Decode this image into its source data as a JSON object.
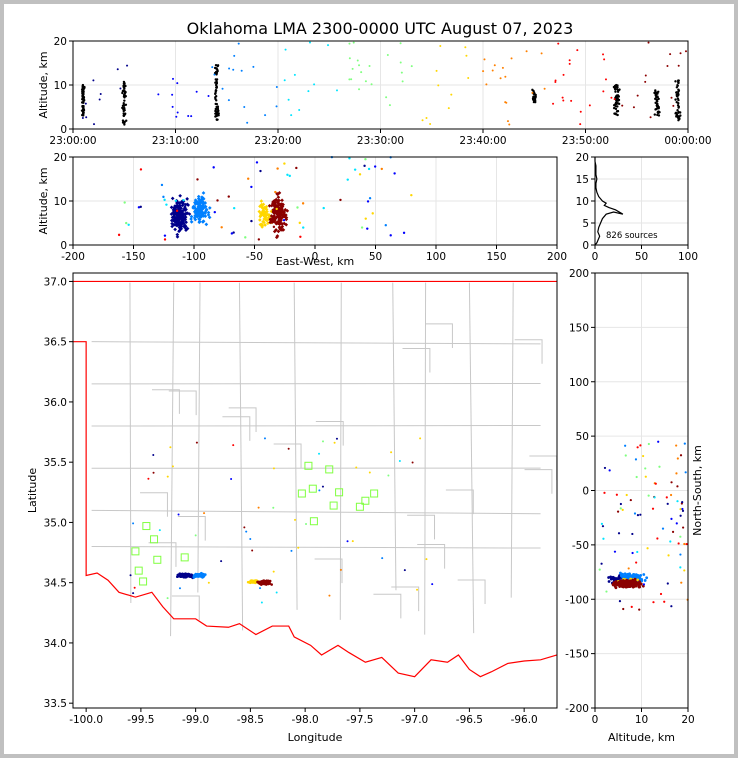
{
  "title": "Oklahoma LMA 2300-0000 UTC August 07, 2023",
  "colors": {
    "colormap": [
      "#00008b",
      "#0000ff",
      "#0080ff",
      "#00e5ff",
      "#7fff7f",
      "#ffd700",
      "#ff8000",
      "#ff0000",
      "#8b0000"
    ],
    "boundary": "#ff0000",
    "counties": "#c8c8c8",
    "stations": "#80ff40"
  },
  "chart_data": [
    {
      "name": "time-altitude",
      "type": "scatter",
      "ylabel": "Altitude, km",
      "xlabel": "",
      "x_ticks": [
        "23:00:00",
        "23:10:00",
        "23:20:00",
        "23:30:00",
        "23:40:00",
        "23:50:00",
        "00:00:00"
      ],
      "xlim_minutes": [
        0,
        60
      ],
      "ylim": [
        0,
        20
      ],
      "y_ticks": [
        0,
        10,
        20
      ],
      "clusters": [
        {
          "t": 1,
          "zmin": 3,
          "zmax": 10,
          "color_index": 0,
          "n": 60,
          "spread": 0.2
        },
        {
          "t": 5,
          "zmin": 1,
          "zmax": 11,
          "color_index": 1,
          "n": 50,
          "spread": 0.3
        },
        {
          "t": 14,
          "zmin": 2,
          "zmax": 15,
          "color_index": 2,
          "n": 60,
          "spread": 0.3
        },
        {
          "t": 45,
          "zmin": 6,
          "zmax": 9,
          "color_index": 5,
          "n": 30,
          "spread": 0.3
        },
        {
          "t": 53,
          "zmin": 3,
          "zmax": 10,
          "color_index": 6,
          "n": 50,
          "spread": 0.4
        },
        {
          "t": 57,
          "zmin": 3,
          "zmax": 9,
          "color_index": 7,
          "n": 40,
          "spread": 0.4
        },
        {
          "t": 59,
          "zmin": 2,
          "zmax": 11,
          "color_index": 8,
          "n": 45,
          "spread": 0.4
        }
      ]
    },
    {
      "name": "ew-altitude",
      "type": "scatter",
      "xlabel": "East-West, km",
      "ylabel": "Altitude, km",
      "xlim": [
        -200,
        200
      ],
      "x_ticks": [
        -200,
        -150,
        -100,
        -50,
        0,
        50,
        100,
        150,
        200
      ],
      "ylim": [
        0,
        20
      ],
      "y_ticks": [
        0,
        10,
        20
      ]
    },
    {
      "name": "altitude-histogram",
      "type": "line",
      "xlim": [
        0,
        100
      ],
      "x_ticks": [
        0,
        50,
        100
      ],
      "ylim": [
        0,
        20
      ],
      "y_ticks": [
        0,
        5,
        10,
        15,
        20
      ],
      "annotation": "826 sources",
      "profile": [
        [
          0,
          0
        ],
        [
          2,
          0.5
        ],
        [
          3,
          1
        ],
        [
          5,
          2
        ],
        [
          3,
          3
        ],
        [
          4,
          4
        ],
        [
          6,
          5
        ],
        [
          8,
          6
        ],
        [
          12,
          7
        ],
        [
          20,
          7.5
        ],
        [
          30,
          7
        ],
        [
          22,
          8
        ],
        [
          15,
          8.5
        ],
        [
          10,
          9
        ],
        [
          12,
          9.5
        ],
        [
          8,
          10
        ],
        [
          4,
          11
        ],
        [
          2,
          12
        ],
        [
          1,
          13
        ],
        [
          1,
          14
        ],
        [
          2,
          15
        ],
        [
          1,
          16
        ],
        [
          1,
          17
        ],
        [
          1,
          18
        ],
        [
          0,
          19
        ],
        [
          0,
          20
        ]
      ]
    },
    {
      "name": "plan-view",
      "type": "scatter",
      "xlabel": "Longitude",
      "ylabel": "Latitude",
      "xlim": [
        -100.12,
        -95.7
      ],
      "ylim": [
        33.46,
        37.07
      ],
      "x_ticks": [
        -100.0,
        -99.5,
        -99.0,
        -98.5,
        -98.0,
        -97.5,
        -97.0,
        -96.5,
        -96.0
      ],
      "y_ticks": [
        33.5,
        34.0,
        34.5,
        35.0,
        35.5,
        36.0,
        36.5,
        37.0
      ],
      "stations": [
        [
          -99.45,
          34.97
        ],
        [
          -99.38,
          34.86
        ],
        [
          -99.55,
          34.76
        ],
        [
          -99.35,
          34.69
        ],
        [
          -99.52,
          34.6
        ],
        [
          -99.48,
          34.51
        ],
        [
          -99.1,
          34.71
        ],
        [
          -98.03,
          35.24
        ],
        [
          -97.97,
          35.47
        ],
        [
          -97.93,
          35.28
        ],
        [
          -97.78,
          35.44
        ],
        [
          -97.74,
          35.14
        ],
        [
          -97.69,
          35.25
        ],
        [
          -97.5,
          35.13
        ],
        [
          -97.45,
          35.18
        ],
        [
          -97.37,
          35.24
        ],
        [
          -97.92,
          35.01
        ]
      ]
    },
    {
      "name": "altitude-ns",
      "type": "scatter",
      "xlabel": "Altitude, km",
      "ylabel": "North-South, km",
      "xlim": [
        0,
        20
      ],
      "x_ticks": [
        0,
        10,
        20
      ],
      "ylim": [
        -200,
        200
      ],
      "y_ticks": [
        -200,
        -150,
        -100,
        -50,
        0,
        50,
        100,
        150,
        200
      ]
    }
  ]
}
